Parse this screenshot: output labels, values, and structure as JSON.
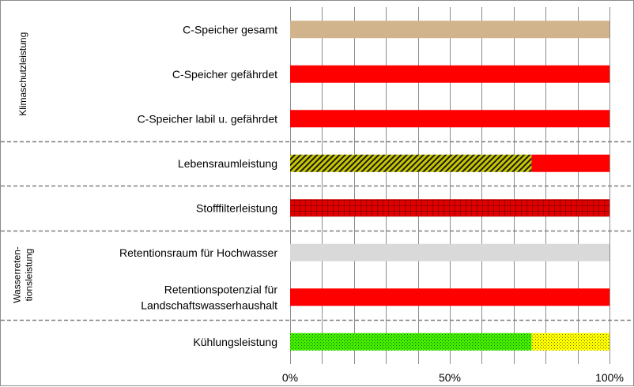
{
  "chart_data": {
    "type": "bar",
    "orientation": "horizontal",
    "stacked": true,
    "xlim": [
      0,
      100
    ],
    "x_ticks": [
      "0%",
      "50%",
      "100%"
    ],
    "grid": true,
    "groups": [
      {
        "name": "Klimaschutzleistung",
        "rows": [
          0,
          2
        ]
      },
      {
        "name": "Wasserreten-tionsleistung",
        "lines": [
          "Wasserreten-",
          "tionsleistung"
        ],
        "rows": [
          5,
          6
        ]
      }
    ],
    "categories": [
      {
        "label": "C-Speicher gesamt",
        "lines": [
          "C-Speicher gesamt"
        ],
        "segments": [
          {
            "value": 100,
            "color": "#d2b48c",
            "pattern": "solid"
          }
        ]
      },
      {
        "label": "C-Speicher gefährdet",
        "lines": [
          "C-Speicher gefährdet"
        ],
        "segments": [
          {
            "value": 100,
            "color": "#ff0000",
            "pattern": "solid"
          }
        ]
      },
      {
        "label": "C-Speicher labil u. gefährdet",
        "lines": [
          "C-Speicher labil u. gefährdet"
        ],
        "segments": [
          {
            "value": 100,
            "color": "#ff0000",
            "pattern": "solid"
          }
        ]
      },
      {
        "label": "Lebensraumleistung",
        "lines": [
          "Lebensraumleistung"
        ],
        "segments": [
          {
            "value": 75.6,
            "color": "#c8c800",
            "pattern": "diagonal"
          },
          {
            "value": 24.4,
            "color": "#ff0000",
            "pattern": "solid"
          }
        ]
      },
      {
        "label": "Stofffilterleistung",
        "lines": [
          "Stofffilterleistung"
        ],
        "segments": [
          {
            "value": 100,
            "color": "#e00000",
            "pattern": "grid"
          }
        ]
      },
      {
        "label": "Retentionsraum für Hochwasser",
        "lines": [
          "Retentionsraum für Hochwasser"
        ],
        "segments": [
          {
            "value": 100,
            "color": "#d9d9d9",
            "pattern": "solid"
          }
        ]
      },
      {
        "label": "Retentionspotenzial für Landschaftswasserhaushalt",
        "lines": [
          "Retentionspotenzial für",
          "Landschaftswasserhaushalt"
        ],
        "segments": [
          {
            "value": 100,
            "color": "#ff0000",
            "pattern": "solid"
          }
        ]
      },
      {
        "label": "Kühlungsleistung",
        "lines": [
          "Kühlungsleistung"
        ],
        "segments": [
          {
            "value": 75.6,
            "color": "#44ee00",
            "pattern": "dots-green"
          },
          {
            "value": 24.4,
            "color": "#ffff00",
            "pattern": "dots-yellow"
          }
        ]
      }
    ],
    "separators_after_rows": [
      2,
      3,
      4,
      6
    ]
  }
}
